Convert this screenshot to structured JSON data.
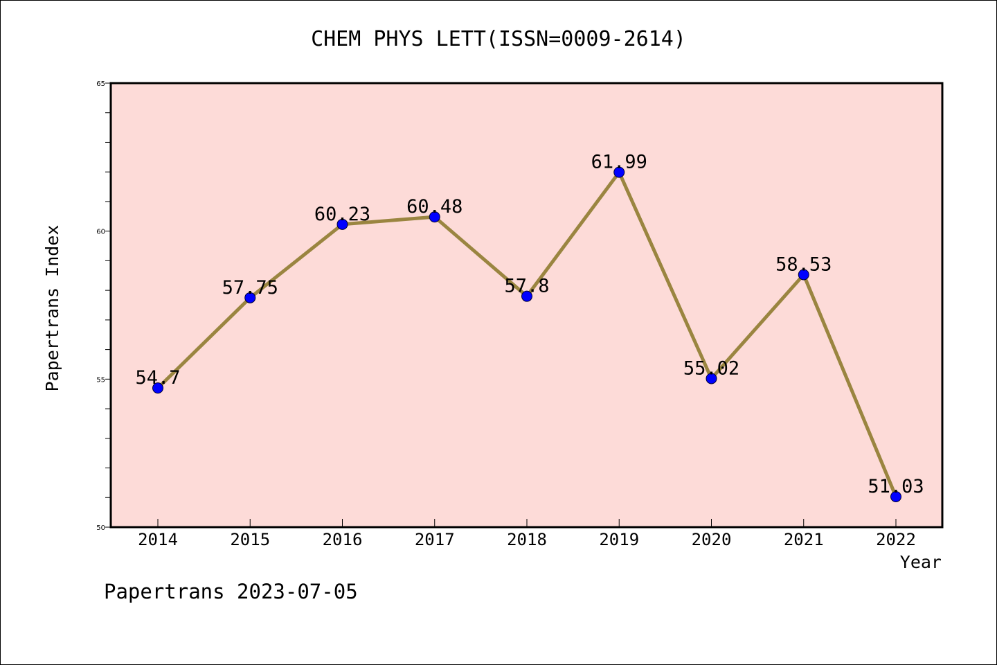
{
  "chart_data": {
    "type": "line",
    "title": "CHEM PHYS LETT(ISSN=0009-2614)",
    "xlabel": "Year",
    "ylabel": "Papertrans Index",
    "categories": [
      "2014",
      "2015",
      "2016",
      "2017",
      "2018",
      "2019",
      "2020",
      "2021",
      "2022"
    ],
    "values": [
      54.7,
      57.75,
      60.23,
      60.48,
      57.8,
      61.99,
      55.02,
      58.53,
      51.03
    ],
    "data_labels": [
      "54.7",
      "57.75",
      "60.23",
      "60.48",
      "57.8",
      "61.99",
      "55.02",
      "58.53",
      "51.03"
    ],
    "ylim": [
      50,
      65
    ],
    "yticks": [
      50,
      55,
      60,
      65
    ],
    "grid": false,
    "colors": {
      "plot_background": "#fddbd8",
      "line": "#9a8540",
      "marker": "#0000ff",
      "axes": "#000000"
    }
  },
  "footer": "Papertrans 2023-07-05"
}
